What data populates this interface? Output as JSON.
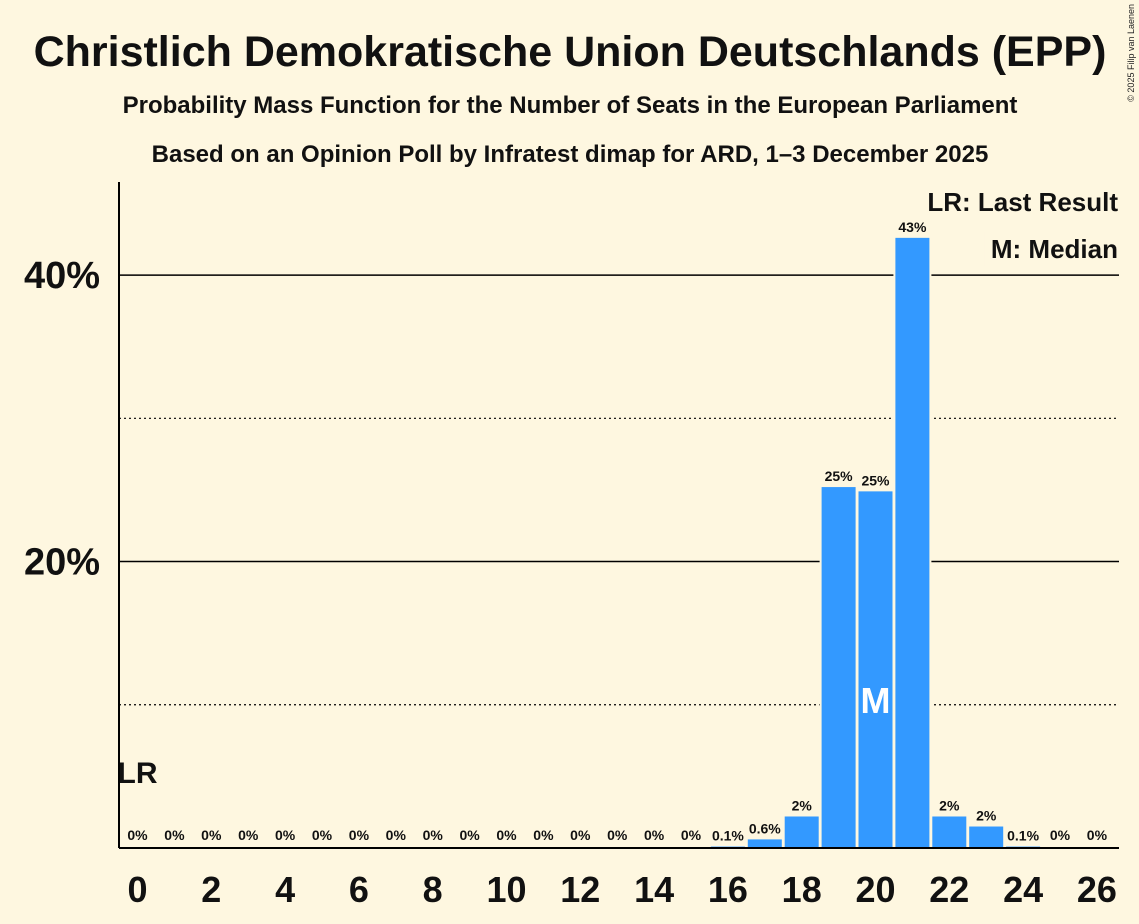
{
  "chart_data": {
    "type": "bar",
    "title": "Christlich Demokratische Union Deutschlands (EPP)",
    "subtitle": "Probability Mass Function for the Number of Seats in the European Parliament",
    "subtitle2": "Based on an Opinion Poll by Infratest dimap for ARD, 1–3 December 2025",
    "copyright": "© 2025 Filip van Laenen",
    "xlabel": "",
    "ylabel": "",
    "ylim": [
      0,
      46.5
    ],
    "categories": [
      0,
      1,
      2,
      3,
      4,
      5,
      6,
      7,
      8,
      9,
      10,
      11,
      12,
      13,
      14,
      15,
      16,
      17,
      18,
      19,
      20,
      21,
      22,
      23,
      24,
      25,
      26
    ],
    "values": [
      0,
      0,
      0,
      0,
      0,
      0,
      0,
      0,
      0,
      0,
      0,
      0,
      0,
      0,
      0,
      0,
      0.1,
      0.6,
      2.2,
      25.2,
      24.9,
      42.6,
      2.2,
      1.5,
      0.1,
      0,
      0
    ],
    "value_labels": [
      "0%",
      "0%",
      "0%",
      "0%",
      "0%",
      "0%",
      "0%",
      "0%",
      "0%",
      "0%",
      "0%",
      "0%",
      "0%",
      "0%",
      "0%",
      "0%",
      "0.1%",
      "0.6%",
      "2%",
      "25%",
      "25%",
      "43%",
      "2%",
      "2%",
      "0.1%",
      "0%",
      "0%"
    ],
    "x_tick_labels": [
      "0",
      "2",
      "4",
      "6",
      "8",
      "10",
      "12",
      "14",
      "16",
      "18",
      "20",
      "22",
      "24",
      "26"
    ],
    "x_tick_values": [
      0,
      2,
      4,
      6,
      8,
      10,
      12,
      14,
      16,
      18,
      20,
      22,
      24,
      26
    ],
    "y_ticks": [
      {
        "value": 20,
        "label": "20%"
      },
      {
        "value": 40,
        "label": "40%"
      }
    ],
    "y_minor_gridlines": [
      10,
      30
    ],
    "last_result": {
      "seat": 0,
      "label": "LR"
    },
    "median": {
      "seat": 20,
      "label": "M"
    },
    "legend": {
      "position": "top-right",
      "items": [
        "LR: Last Result",
        "M: Median"
      ]
    },
    "colors": {
      "bar": "#3399FF",
      "background": "#FEF7E0",
      "text": "#000000",
      "median_text": "#FFFFFF"
    }
  }
}
